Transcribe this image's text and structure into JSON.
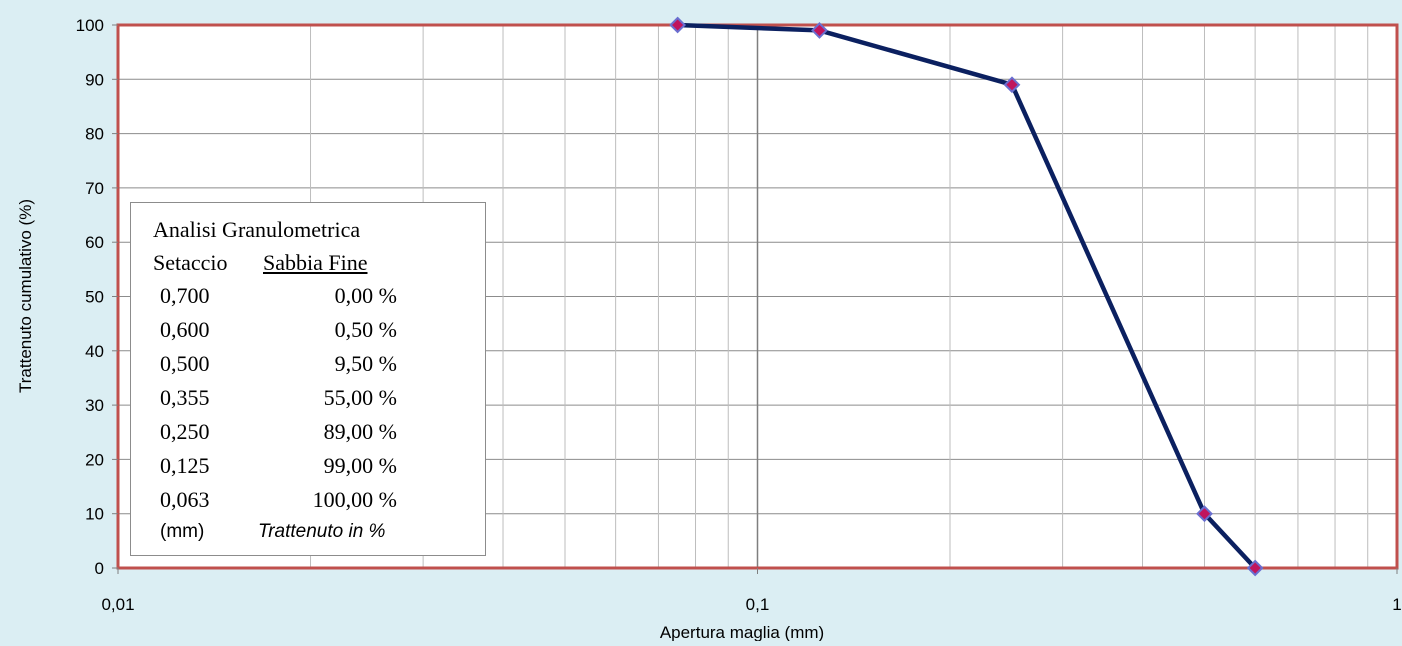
{
  "chart_data": {
    "type": "line",
    "xlabel": "Apertura maglia  (mm)",
    "ylabel": "Trattenuto cumulativo (%)",
    "x_scale": "log",
    "xlim": [
      0.01,
      1
    ],
    "ylim": [
      0,
      100
    ],
    "x_tick_labels": [
      "0,01",
      "0,1",
      "1"
    ],
    "y_tick_labels": [
      "0",
      "10",
      "20",
      "30",
      "40",
      "50",
      "60",
      "70",
      "80",
      "90",
      "100"
    ],
    "grid": true,
    "line_color": "#0b2060",
    "marker_color": "#c0155e",
    "marker_edge_color": "#6a6fd0",
    "plot_border_color": "#c0504d",
    "series": [
      {
        "x": [
          0.075,
          0.125,
          0.25,
          0.5,
          0.6
        ],
        "y": [
          100,
          99,
          89,
          10,
          0
        ]
      }
    ],
    "legend_table": {
      "title": "Analisi Granulometrica",
      "col1_header": "Setaccio",
      "col2_header": "Sabbia Fine",
      "rows": [
        {
          "sieve": "0,700",
          "pct": "0,00 %"
        },
        {
          "sieve": "0,600",
          "pct": "0,50 %"
        },
        {
          "sieve": "0,500",
          "pct": "9,50 %"
        },
        {
          "sieve": "0,355",
          "pct": "55,00 %"
        },
        {
          "sieve": "0,250",
          "pct": "89,00 %"
        },
        {
          "sieve": "0,125",
          "pct": "99,00 %"
        },
        {
          "sieve": "0,063",
          "pct": "100,00 %"
        }
      ],
      "unit_label": "(mm)",
      "note": "Trattenuto in %"
    }
  }
}
